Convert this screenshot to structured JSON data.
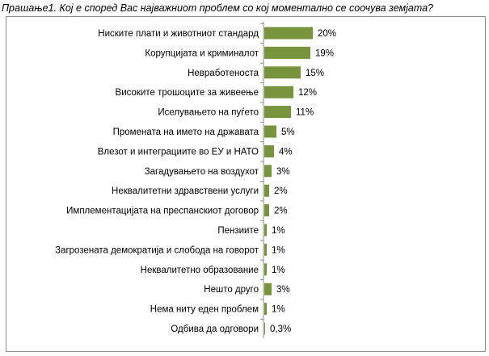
{
  "question": "Прашање1. Кој е според Вас најважниот проблем со кој моментално се соочува земјата?",
  "colors": {
    "bar": "#77933c",
    "axis": "#8c8c8c"
  },
  "chart_data": {
    "type": "bar",
    "orientation": "horizontal",
    "title": "",
    "xlabel": "",
    "ylabel": "",
    "grid": false,
    "legend": "none",
    "xlim": [
      0,
      20
    ],
    "categories": [
      "Ниските плати и животниот стандард",
      "Корупцијата и криминалот",
      "Невработеноста",
      "Високите трошоците за живеење",
      "Иселувањето на пуѓето",
      "Промената на името на државата",
      "Влезот и интеграциите во ЕУ и НАТО",
      "Загадувањето на воздухот",
      "Неквалитетни здравствени услуги",
      "Имплементацијата на преспанскиот договор",
      "Пензиите",
      "Загрозената демократија и слобода на говорот",
      "Неквалитетно образование",
      "Нешто друго",
      "Нема ниту еден проблем",
      "Одбива да одговори"
    ],
    "values": [
      20,
      19,
      15,
      12,
      11,
      5,
      4,
      3,
      2,
      2,
      1,
      1,
      1,
      3,
      1,
      0.3
    ],
    "value_labels": [
      "20%",
      "19%",
      "15%",
      "12%",
      "11%",
      "5%",
      "4%",
      "3%",
      "2%",
      "2%",
      "1%",
      "1%",
      "1%",
      "3%",
      "1%",
      "0,3%"
    ]
  }
}
